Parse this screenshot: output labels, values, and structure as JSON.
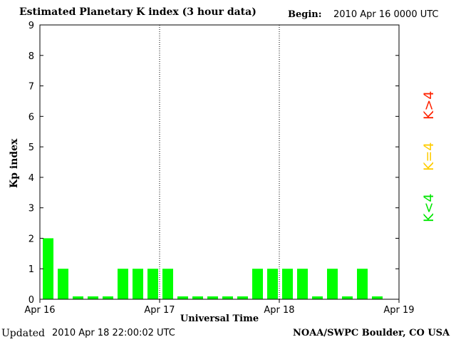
{
  "header": {
    "title": "Estimated Planetary K index (3 hour data)",
    "begin_label": "Begin:",
    "begin_value": "2010 Apr 16 0000 UTC"
  },
  "footer": {
    "updated_label": "Updated",
    "updated_value": "2010 Apr 18 22:00:02 UTC",
    "credit": "NOAA/SWPC Boulder, CO USA"
  },
  "legend": [
    {
      "label": "K<4",
      "color": "#00e600"
    },
    {
      "label": "K=4",
      "color": "#ffcc00"
    },
    {
      "label": "K>4",
      "color": "#ff2200"
    }
  ],
  "chart_data": {
    "type": "bar",
    "title": "Estimated Planetary K index (3 hour data)",
    "xlabel": "Universal Time",
    "ylabel": "Kp index",
    "ylim": [
      0,
      9
    ],
    "yticks": [
      0,
      1,
      2,
      3,
      4,
      5,
      6,
      7,
      8,
      9
    ],
    "xticks": [
      "Apr 16",
      "Apr 17",
      "Apr 18",
      "Apr 19"
    ],
    "interval_hours": 3,
    "values": [
      2,
      1,
      0,
      0,
      0,
      1,
      1,
      1,
      1,
      0,
      0,
      0,
      0,
      0,
      1,
      1,
      1,
      1,
      0,
      1,
      0,
      1,
      0
    ],
    "bar_color": "#00ff00",
    "day_dividers": "dotted",
    "grid": false
  }
}
